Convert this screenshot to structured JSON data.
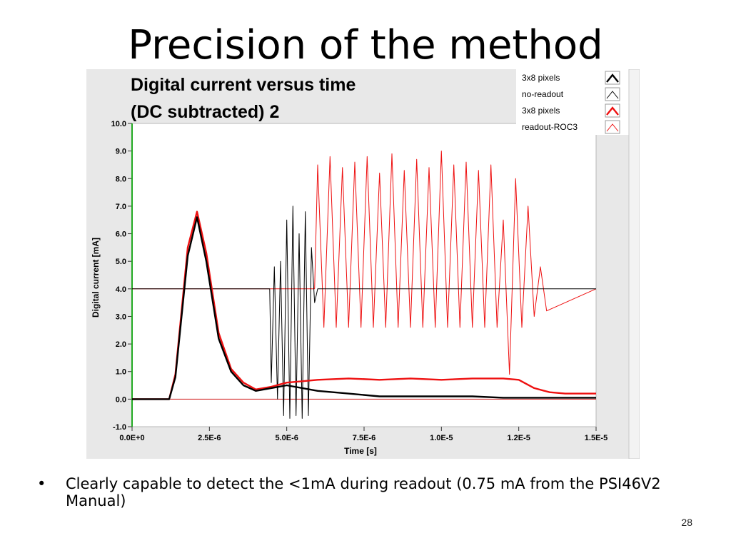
{
  "slide": {
    "title": "Precision of the method",
    "bullet_glyph": "•",
    "bullet": "Clearly capable to detect the <1mA during readout (0.75 mA from the PSI46V2 Manual)",
    "page_number": "28"
  },
  "colors": {
    "black_series": "#000000",
    "red_series": "#ee1010",
    "baseline": "#d01818",
    "y_axis_line": "#22aa22",
    "plot_background": "#ffffff",
    "panel_background": "#e8e8e8"
  },
  "chart_data": {
    "type": "line",
    "title_line1": "Digital current versus time",
    "title_line2": "(DC subtracted)  2",
    "xlabel": "Time [s]",
    "ylabel": "Digital current [mA]",
    "xlim": [
      0,
      1.5e-05
    ],
    "ylim": [
      -1,
      10
    ],
    "x_ticks": [
      {
        "value": 0,
        "label": "0.0E+0"
      },
      {
        "value": 2.5e-06,
        "label": "2.5E-6"
      },
      {
        "value": 5e-06,
        "label": "5.0E-6"
      },
      {
        "value": 7.5e-06,
        "label": "7.5E-6"
      },
      {
        "value": 1e-05,
        "label": "1.0E-5"
      },
      {
        "value": 1.25e-05,
        "label": "1.2E-5"
      },
      {
        "value": 1.5e-05,
        "label": "1.5E-5"
      }
    ],
    "y_ticks": [
      {
        "value": 10,
        "label": "10.0"
      },
      {
        "value": 9,
        "label": "9.0"
      },
      {
        "value": 8,
        "label": "8.0"
      },
      {
        "value": 7,
        "label": "7.0"
      },
      {
        "value": 6,
        "label": "6.0"
      },
      {
        "value": 5,
        "label": "5.0"
      },
      {
        "value": 4,
        "label": "4.0"
      },
      {
        "value": 3,
        "label": "3.0"
      },
      {
        "value": 2,
        "label": "2.0"
      },
      {
        "value": 1,
        "label": "1.0"
      },
      {
        "value": 0,
        "label": "0.0"
      },
      {
        "value": -1,
        "label": "-1.0"
      }
    ],
    "legend_position": "top-right",
    "legend": [
      {
        "label": "3x8 pixels",
        "series": "black"
      },
      {
        "label": "no-readout",
        "series": "black-thin"
      },
      {
        "label": "3x8 pixels",
        "series": "red"
      },
      {
        "label": "readout-ROC3",
        "series": "red-thin"
      }
    ],
    "series": [
      {
        "key": "black",
        "x": [
          0,
          1.2e-06,
          1.4e-06,
          1.8e-06,
          2.1e-06,
          2.4e-06,
          2.8e-06,
          3.2e-06,
          3.6e-06,
          4e-06,
          4.5e-06,
          5e-06,
          6e-06,
          7e-06,
          8e-06,
          9e-06,
          1e-05,
          1.1e-05,
          1.2e-05,
          1.3e-05,
          1.4e-05,
          1.5e-05
        ],
        "values": [
          0,
          0,
          0.8,
          5.2,
          6.6,
          5.0,
          2.2,
          1.0,
          0.5,
          0.3,
          0.4,
          0.5,
          0.3,
          0.2,
          0.1,
          0.1,
          0.1,
          0.1,
          0.05,
          0.05,
          0.05,
          0.05
        ]
      },
      {
        "key": "black-thin",
        "x": [
          0,
          4.45e-06,
          4.5e-06,
          4.6e-06,
          4.7e-06,
          4.8e-06,
          4.9e-06,
          5e-06,
          5.1e-06,
          5.2e-06,
          5.3e-06,
          5.4e-06,
          5.5e-06,
          5.6e-06,
          5.7e-06,
          5.8e-06,
          5.9e-06,
          6e-06,
          1.5e-05
        ],
        "values": [
          4.0,
          4.0,
          0.6,
          4.8,
          0.0,
          5.0,
          -0.6,
          6.5,
          -0.7,
          7.0,
          -0.6,
          6.0,
          -0.7,
          6.8,
          -0.6,
          5.5,
          3.5,
          4.0,
          4.0
        ]
      },
      {
        "key": "red",
        "x": [
          0,
          1.2e-06,
          1.4e-06,
          1.8e-06,
          2.1e-06,
          2.4e-06,
          2.8e-06,
          3.2e-06,
          3.6e-06,
          4e-06,
          4.5e-06,
          5e-06,
          5.5e-06,
          6e-06,
          7e-06,
          8e-06,
          9e-06,
          1e-05,
          1.1e-05,
          1.2e-05,
          1.25e-05,
          1.3e-05,
          1.35e-05,
          1.4e-05,
          1.5e-05
        ],
        "values": [
          0,
          0,
          0.9,
          5.5,
          6.8,
          5.3,
          2.4,
          1.1,
          0.6,
          0.35,
          0.45,
          0.6,
          0.65,
          0.7,
          0.75,
          0.7,
          0.75,
          0.7,
          0.75,
          0.75,
          0.7,
          0.4,
          0.25,
          0.2,
          0.2
        ]
      },
      {
        "key": "red-thin",
        "x": [
          0,
          5.9e-06,
          6e-06,
          6.2e-06,
          6.4e-06,
          6.6e-06,
          6.8e-06,
          7e-06,
          7.2e-06,
          7.4e-06,
          7.6e-06,
          7.8e-06,
          8e-06,
          8.2e-06,
          8.4e-06,
          8.6e-06,
          8.8e-06,
          9e-06,
          9.2e-06,
          9.4e-06,
          9.6e-06,
          9.8e-06,
          1e-05,
          1.02e-05,
          1.04e-05,
          1.06e-05,
          1.08e-05,
          1.1e-05,
          1.12e-05,
          1.14e-05,
          1.16e-05,
          1.18e-05,
          1.2e-05,
          1.22e-05,
          1.24e-05,
          1.26e-05,
          1.28e-05,
          1.3e-05,
          1.32e-05,
          1.34e-05,
          1.5e-05
        ],
        "values": [
          4.0,
          4.0,
          8.5,
          2.6,
          8.8,
          2.6,
          8.4,
          2.6,
          8.6,
          2.6,
          8.8,
          2.6,
          8.2,
          2.6,
          8.9,
          2.6,
          8.3,
          2.6,
          8.7,
          2.6,
          8.4,
          2.6,
          9.0,
          2.6,
          8.5,
          2.6,
          8.6,
          2.6,
          8.3,
          2.6,
          8.5,
          2.6,
          6.5,
          0.9,
          8.0,
          2.6,
          7.0,
          3.0,
          4.8,
          3.2,
          4.0
        ]
      }
    ]
  }
}
